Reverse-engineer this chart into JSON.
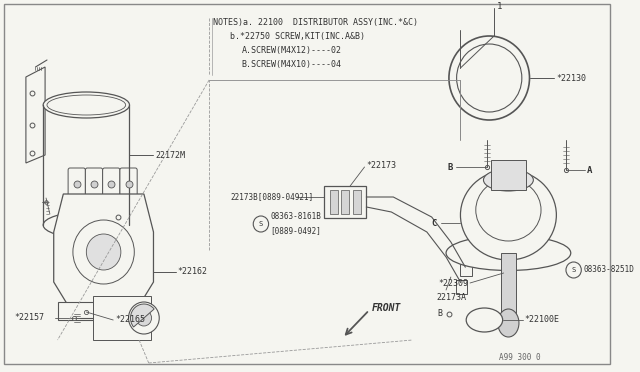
{
  "bg_color": "#f5f5f0",
  "line_color": "#555555",
  "text_color": "#333333",
  "notes_lines": [
    "NOTES)a. 22100  DISTRIBUTOR ASSY(INC.*&C)",
    "b.*22750 SCREW,KIT(INC.A&B)",
    "A.SCREW(M4X12)----02",
    "B.SCREW(M4X10)----04"
  ],
  "diagram_ref": "A99 300 0",
  "front_label": "FRONT"
}
